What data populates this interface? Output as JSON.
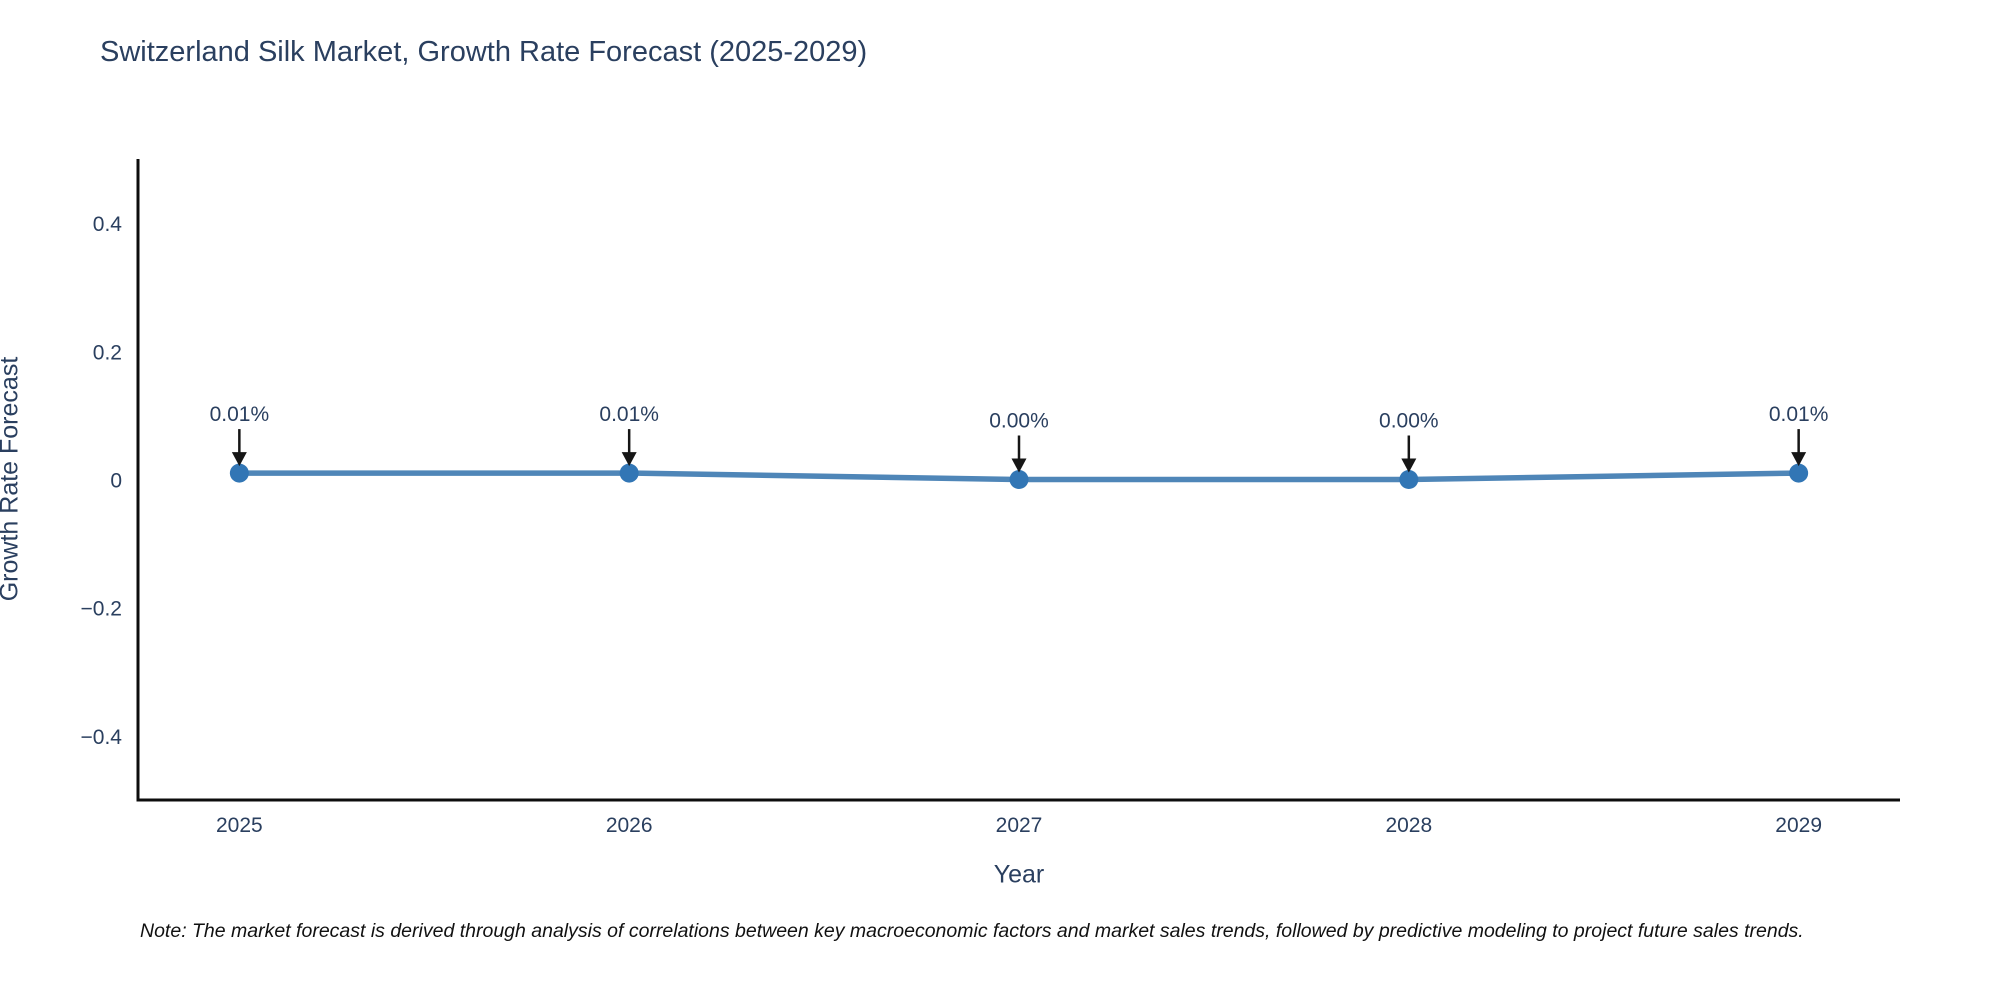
{
  "page": {
    "note": "Note: The market forecast is derived through analysis of correlations between key macroeconomic factors and market sales trends, followed by predictive modeling to project future sales trends."
  },
  "chart_data": {
    "type": "line",
    "title": "Switzerland Silk Market, Growth Rate Forecast (2025-2029)",
    "xlabel": "Year",
    "ylabel": "Growth Rate Forecast",
    "x": [
      2025,
      2026,
      2027,
      2028,
      2029
    ],
    "values": [
      0.01,
      0.01,
      0.0,
      0.0,
      0.01
    ],
    "annotations": [
      "0.01%",
      "0.01%",
      "0.00%",
      "0.00%",
      "0.01%"
    ],
    "xticks": [
      2025,
      2026,
      2027,
      2028,
      2029
    ],
    "yticks": [
      -0.4,
      -0.2,
      0,
      0.2,
      0.4
    ],
    "xlim": [
      2024.74,
      2029.26
    ],
    "ylim": [
      -0.5,
      0.5
    ],
    "grid": false,
    "legend": false,
    "line_color": "#4f86b8",
    "marker_color": "#3276b5",
    "arrow_color": "#161616",
    "axis_color": "#0d0d0d",
    "text_color": "#2a3f5f"
  }
}
